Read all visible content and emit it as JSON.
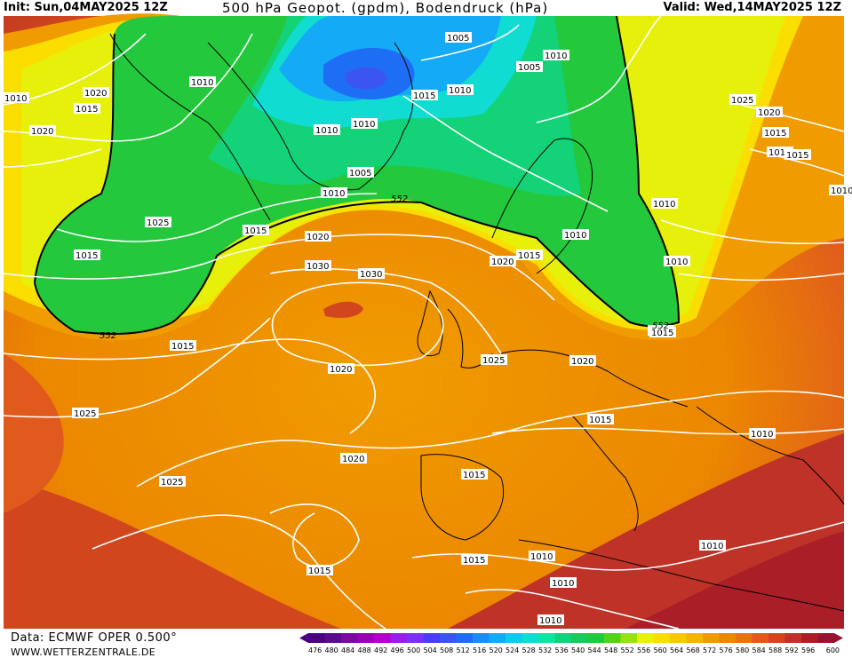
{
  "header": {
    "init": "Init: Sun,04MAY2025 12Z",
    "title": "500 hPa Geopot. (gpdm), Bodendruck (hPa)",
    "valid": "Valid: Wed,14MAY2025 12Z"
  },
  "footer": {
    "data_source": "Data: ECMWF OPER 0.500°",
    "website": "WWW.WETTERZENTRALE.DE"
  },
  "legend": {
    "values": [
      "476",
      "480",
      "484",
      "488",
      "492",
      "496",
      "500",
      "504",
      "508",
      "512",
      "516",
      "520",
      "524",
      "528",
      "532",
      "536",
      "540",
      "544",
      "548",
      "552",
      "556",
      "560",
      "564",
      "568",
      "572",
      "576",
      "580",
      "584",
      "588",
      "592",
      "596",
      "600"
    ],
    "colors": [
      "#4b0082",
      "#5c0a8f",
      "#7a0aa0",
      "#9b00b4",
      "#b400c8",
      "#9a1ee6",
      "#7a32f5",
      "#4a3cf5",
      "#3b55f0",
      "#1e6ef5",
      "#1e8cf5",
      "#14aaf5",
      "#10c8f0",
      "#10dcd2",
      "#10e6a0",
      "#14d278",
      "#1ec85a",
      "#23c83c",
      "#50d21e",
      "#96e114",
      "#e6f00a",
      "#fade00",
      "#f8c800",
      "#f5b400",
      "#f09b00",
      "#eb8700",
      "#e67314",
      "#e05a1e",
      "#d2461e",
      "#be3228",
      "#aa1e28",
      "#961432"
    ]
  },
  "map": {
    "isobar_labels": [
      "1005",
      "1010",
      "1005",
      "1010",
      "1015",
      "1010",
      "1010",
      "1020",
      "1015",
      "1015",
      "1025",
      "1020",
      "1015",
      "1010",
      "1010",
      "1010",
      "1005",
      "1010",
      "1015",
      "1020",
      "1025",
      "1015",
      "1010",
      "1015",
      "1010",
      "1020",
      "1025",
      "1030",
      "1015",
      "1030",
      "1020",
      "1025",
      "1020",
      "1025",
      "1020",
      "1015",
      "1015",
      "1010",
      "1015",
      "1010",
      "1010",
      "1010",
      "1015",
      "1015",
      "1010",
      "1020",
      "1015",
      "1010",
      "1010"
    ],
    "height_label": "552"
  }
}
